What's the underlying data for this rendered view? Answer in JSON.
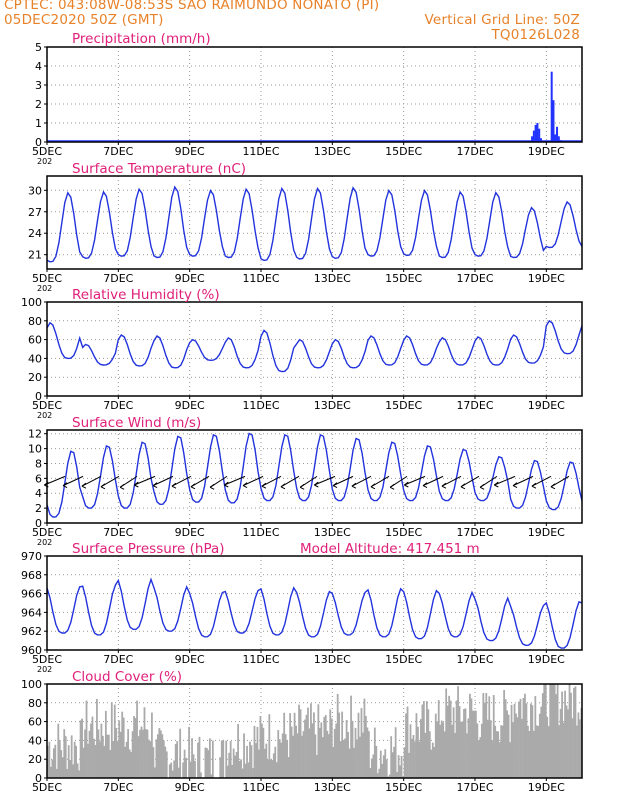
{
  "header": {
    "left_line1": "CPTEC:   043:08W-08:53S  SAO RAIMUNDO NONATO (PI)",
    "left_line2": "05DEC2020 50Z (GMT)",
    "right_line2": "Vertical Grid Line: 50Z",
    "right_line3": "TQ0126L028"
  },
  "colors": {
    "header": "#e8822a",
    "title": "#e0207a",
    "line": "#2233dd",
    "bars": "#2233ff",
    "cloud": "#aaaaaa",
    "grid": "#999999"
  },
  "x_axis": {
    "tick_labels": [
      "5DEC",
      "7DEC",
      "9DEC",
      "11DEC",
      "13DEC",
      "15DEC",
      "17DEC",
      "19DEC"
    ],
    "tick_days": [
      0,
      2,
      4,
      6,
      8,
      10,
      12,
      14
    ],
    "xlim_days": [
      0,
      15
    ],
    "year_fragment": "202"
  },
  "chart_data": [
    {
      "id": "precip",
      "type": "bar",
      "title": "Precipitation (mm/h)",
      "ylim": [
        0,
        5
      ],
      "yticks": [
        0,
        1,
        2,
        3,
        4,
        5
      ],
      "grid": true,
      "x_days": [
        13.6,
        13.65,
        13.7,
        13.75,
        13.8,
        13.85,
        14.15,
        14.2,
        14.25,
        14.3,
        14.35,
        14.4
      ],
      "values": [
        0.3,
        0.6,
        0.9,
        1.0,
        0.7,
        0.2,
        3.7,
        2.2,
        0.4,
        0.8,
        0.3,
        0.1
      ]
    },
    {
      "id": "temp",
      "type": "line",
      "title": "Surface Temperature (nC)",
      "ylim": [
        19,
        32
      ],
      "yticks": [
        21,
        24,
        27,
        30
      ],
      "grid": true,
      "daily_min": [
        20.0,
        20.5,
        20.8,
        20.6,
        20.8,
        20.6,
        20.2,
        20.4,
        20.5,
        20.8,
        20.9,
        20.6,
        20.8,
        20.6,
        22.0
      ],
      "daily_max": [
        29.7,
        29.8,
        30.2,
        30.5,
        30.0,
        30.2,
        30.3,
        30.3,
        30.4,
        30.0,
        30.0,
        29.8,
        29.7,
        27.6,
        28.4
      ]
    },
    {
      "id": "rh",
      "type": "line",
      "title": "Relative Humidity (%)",
      "ylim": [
        0,
        100
      ],
      "yticks": [
        0,
        20,
        40,
        60,
        80,
        100
      ],
      "grid": true,
      "daily_min": [
        40,
        33,
        32,
        30,
        38,
        30,
        26,
        30,
        30,
        33,
        33,
        33,
        33,
        35,
        45
      ],
      "daily_max": [
        78,
        55,
        65,
        64,
        60,
        62,
        70,
        60,
        60,
        64,
        64,
        62,
        63,
        65,
        80
      ]
    },
    {
      "id": "wind",
      "type": "line",
      "title": "Surface Wind (m/s)",
      "ylim": [
        0,
        12.5
      ],
      "yticks": [
        0,
        2,
        4,
        6,
        8,
        10,
        12
      ],
      "grid": true,
      "daily_min": [
        0.8,
        2.0,
        2.0,
        2.5,
        2.8,
        2.7,
        3.0,
        3.0,
        3.0,
        3.0,
        3.0,
        3.0,
        3.0,
        2.0,
        1.8
      ],
      "daily_max": [
        9.8,
        10.5,
        11.0,
        11.8,
        12.0,
        12.2,
        12.0,
        12.0,
        11.5,
        11.0,
        10.5,
        10.0,
        9.0,
        8.5,
        8.3
      ],
      "barb_speed": 6,
      "barb_direction": "from east-northeast"
    },
    {
      "id": "pres",
      "type": "line",
      "title": "Surface Pressure (hPa)",
      "annotation": "Model Altitude: 417.451 m",
      "ylim": [
        960,
        970
      ],
      "yticks": [
        960,
        962,
        964,
        966,
        968,
        970
      ],
      "grid": true,
      "daily_max": [
        966.8,
        967.0,
        967.6,
        966.8,
        966.2,
        966.4,
        966.7,
        966.3,
        966.2,
        966.6,
        966.4,
        966.2,
        965.6,
        964.8,
        965.2
      ],
      "daily_min": [
        961.8,
        961.6,
        962.2,
        962.0,
        961.4,
        961.8,
        961.6,
        961.4,
        961.6,
        961.4,
        961.2,
        961.4,
        961.0,
        960.5,
        960.2
      ]
    },
    {
      "id": "cloud",
      "type": "area",
      "title": "Cloud Cover (%)",
      "ylim": [
        0,
        100
      ],
      "yticks": [
        0,
        20,
        40,
        60,
        80,
        100
      ],
      "grid": true,
      "daily_mean": [
        35,
        55,
        55,
        25,
        20,
        40,
        45,
        50,
        60,
        30,
        55,
        70,
        65,
        80,
        85
      ]
    }
  ]
}
